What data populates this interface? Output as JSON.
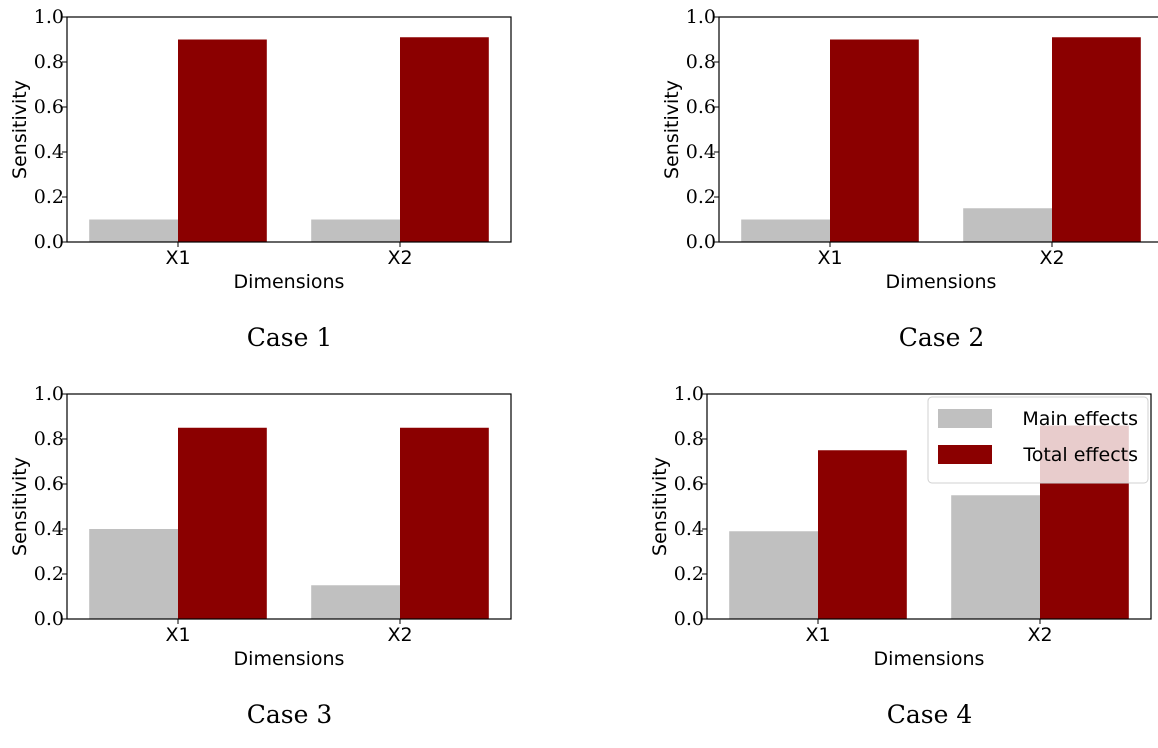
{
  "colors": {
    "main_effects": "#c0c0c0",
    "total_effects": "#8b0000"
  },
  "chart_data": [
    {
      "type": "bar",
      "caption": "Case 1",
      "categories": [
        "X1",
        "X2"
      ],
      "series": [
        {
          "name": "Main effects",
          "values": [
            0.1,
            0.1
          ]
        },
        {
          "name": "Total effects",
          "values": [
            0.9,
            0.91
          ]
        }
      ],
      "xlabel": "Dimensions",
      "ylabel": "Sensitivity",
      "ylim": [
        0,
        1
      ],
      "yticks": [
        "0.0",
        "0.2",
        "0.4",
        "0.6",
        "0.8",
        "1.0"
      ],
      "legend": false
    },
    {
      "type": "bar",
      "caption": "Case 2",
      "categories": [
        "X1",
        "X2"
      ],
      "series": [
        {
          "name": "Main effects",
          "values": [
            0.1,
            0.15
          ]
        },
        {
          "name": "Total effects",
          "values": [
            0.9,
            0.91
          ]
        }
      ],
      "xlabel": "Dimensions",
      "ylabel": "Sensitivity",
      "ylim": [
        0,
        1
      ],
      "yticks": [
        "0.0",
        "0.2",
        "0.4",
        "0.6",
        "0.8",
        "1.0"
      ],
      "legend": false
    },
    {
      "type": "bar",
      "caption": "Case 3",
      "categories": [
        "X1",
        "X2"
      ],
      "series": [
        {
          "name": "Main effects",
          "values": [
            0.4,
            0.15
          ]
        },
        {
          "name": "Total effects",
          "values": [
            0.85,
            0.85
          ]
        }
      ],
      "xlabel": "Dimensions",
      "ylabel": "Sensitivity",
      "ylim": [
        0,
        1
      ],
      "yticks": [
        "0.0",
        "0.2",
        "0.4",
        "0.6",
        "0.8",
        "1.0"
      ],
      "legend": false
    },
    {
      "type": "bar",
      "caption": "Case 4",
      "categories": [
        "X1",
        "X2"
      ],
      "series": [
        {
          "name": "Main effects",
          "values": [
            0.39,
            0.55
          ]
        },
        {
          "name": "Total effects",
          "values": [
            0.75,
            0.86
          ]
        }
      ],
      "xlabel": "Dimensions",
      "ylabel": "Sensitivity",
      "ylim": [
        0,
        1
      ],
      "yticks": [
        "0.0",
        "0.2",
        "0.4",
        "0.6",
        "0.8",
        "1.0"
      ],
      "legend": true,
      "legend_position": "top-right"
    }
  ]
}
